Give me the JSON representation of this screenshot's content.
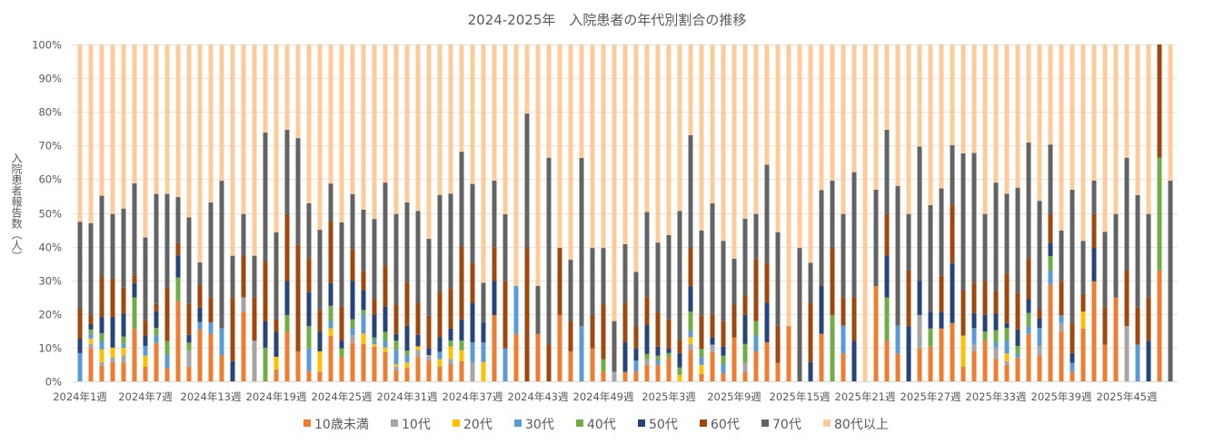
{
  "chart_data": {
    "type": "bar",
    "stacked": true,
    "normalized_percent": true,
    "title": "2024-2025年　入院患者の年代別割合の推移",
    "ylabel": "入院患者報告数（人）",
    "xlabel": "",
    "ylim": [
      0,
      100
    ],
    "yticks": [
      "0%",
      "10%",
      "20%",
      "30%",
      "40%",
      "50%",
      "60%",
      "70%",
      "80%",
      "90%",
      "100%"
    ],
    "grid": true,
    "legend": "bottom",
    "xtick_labels": [
      "2024年1週",
      "2024年7週",
      "2024年13週",
      "2024年19週",
      "2024年25週",
      "2024年31週",
      "2024年37週",
      "2024年43週",
      "2024年49週",
      "2025年3週",
      "2025年9週",
      "2025年15週",
      "2025年21週",
      "2025年27週",
      "2025年33週",
      "2025年39週",
      "2025年45週"
    ],
    "series": [
      {
        "name": "10歳未満",
        "color": "#ED7D31",
        "values": [
          0,
          9.8,
          4.6,
          5.7,
          5.5,
          15.7,
          4.4,
          11.4,
          3.9,
          23.8,
          4.4,
          15.4,
          14.1,
          7.8,
          0,
          20.6,
          0,
          0,
          3.5,
          14.8,
          8.9,
          3,
          2.8,
          13.6,
          7.3,
          11.4,
          11.1,
          10.3,
          8.7,
          3.3,
          4,
          7.3,
          6.2,
          4.4,
          5.1,
          6,
          0,
          0,
          19.7,
          0,
          14.1,
          0,
          14.1,
          0,
          19.7,
          8.9,
          0,
          9.8,
          3,
          0,
          2.8,
          3,
          4.9,
          4.9,
          7.3,
          0,
          9.3,
          2.2,
          8.7,
          2.4,
          13,
          2.8,
          8.9,
          11.6,
          5.5,
          16.4,
          0,
          0,
          14.1,
          0,
          8.2,
          0,
          0,
          28.3,
          12.1,
          8.2,
          0,
          9.8,
          10.3,
          15.7,
          17.3,
          4.4,
          8.9,
          12.1,
          6.6,
          4.9,
          7.1,
          14.1,
          7.8,
          28.8,
          14.8,
          2.8,
          15.7,
          29.7,
          10.9,
          24.9,
          0,
          0,
          0,
          33,
          0
        ]
      },
      {
        "name": "10代",
        "color": "#A5A5A5",
        "values": [
          0,
          1.3,
          1.1,
          1.4,
          2.2,
          0,
          0,
          0,
          0,
          0,
          4.9,
          0,
          0,
          0,
          0,
          4.3,
          12.1,
          0,
          0,
          0,
          0,
          0,
          0,
          0,
          0,
          2.3,
          0,
          0,
          0,
          1.1,
          0,
          2,
          1.6,
          0,
          1.6,
          0,
          5.7,
          0,
          0,
          0,
          0,
          0,
          0,
          0,
          0,
          0,
          0,
          0,
          0,
          2.8,
          0,
          0,
          1.6,
          0,
          0,
          0,
          1.8,
          0,
          2.2,
          0,
          0,
          2.7,
          0,
          0,
          0,
          0,
          0,
          0,
          0,
          0,
          0,
          0,
          0,
          0,
          0,
          0,
          0,
          9.9,
          0,
          0,
          0,
          0,
          2.2,
          0,
          3.4,
          1.1,
          0,
          0,
          2.7,
          0,
          2.5,
          0,
          0,
          0,
          0,
          0,
          16.4,
          0,
          0,
          0,
          0
        ]
      },
      {
        "name": "20代",
        "color": "#FFC000",
        "values": [
          0,
          1.6,
          3.8,
          2.9,
          2.3,
          0,
          3.2,
          0,
          0,
          0,
          0,
          0,
          0,
          0,
          0,
          0,
          0,
          0,
          3.8,
          0,
          0,
          0,
          6.1,
          2.2,
          0,
          0,
          3.1,
          0.7,
          1.3,
          0.7,
          1.6,
          1.1,
          0,
          2.2,
          3.6,
          3.2,
          0,
          5.7,
          0,
          0,
          0,
          0,
          0,
          0,
          0,
          0,
          0,
          0,
          0,
          0,
          0,
          0,
          0,
          0,
          0,
          1.9,
          2,
          2.7,
          0,
          0,
          0,
          0,
          0,
          0,
          0,
          0,
          0,
          0,
          0,
          0,
          0,
          0,
          0,
          0,
          0,
          0,
          0,
          0,
          0,
          0,
          0,
          9.2,
          0,
          0,
          0,
          2.3,
          0,
          0,
          0,
          0,
          0,
          0,
          5,
          0,
          0,
          0,
          0,
          0,
          0,
          0,
          0
        ]
      },
      {
        "name": "30代",
        "color": "#5B9BD5",
        "values": [
          8.4,
          1.4,
          2.5,
          0,
          1.1,
          0,
          2.9,
          2.3,
          4,
          0,
          0,
          2.2,
          3.4,
          7.9,
          0,
          0,
          0,
          0,
          0,
          0,
          0,
          6.8,
          0,
          2.2,
          0,
          2.2,
          5.6,
          1.1,
          2,
          4.3,
          2.2,
          0,
          0,
          2.2,
          0,
          0,
          5.9,
          5.9,
          0,
          9.8,
          14.2,
          0,
          0,
          0,
          0,
          0,
          16.4,
          0,
          0,
          0,
          0,
          3.2,
          0,
          1.3,
          0,
          0,
          1.8,
          2.3,
          0,
          2.7,
          0,
          0,
          4.7,
          0,
          0,
          0,
          0,
          0,
          0,
          0,
          8.3,
          0,
          0,
          0,
          0,
          8.3,
          0,
          0,
          0,
          0,
          0,
          0,
          4.7,
          0,
          1.6,
          3.8,
          1.1,
          2.2,
          5.4,
          4.1,
          2.3,
          2.7,
          0,
          0,
          0,
          0,
          0,
          10.9,
          0,
          0,
          0
        ]
      },
      {
        "name": "40代",
        "color": "#70AD47",
        "values": [
          0,
          1.3,
          2.3,
          0,
          2.2,
          9.2,
          0,
          2.2,
          4.1,
          7,
          2.2,
          0,
          0,
          0,
          0,
          0,
          0,
          10,
          0,
          4.9,
          0,
          6.6,
          0,
          4.5,
          2.5,
          2.5,
          1.4,
          0.9,
          2.7,
          2.7,
          1.3,
          0,
          0,
          0,
          1.8,
          2.9,
          0,
          0,
          0,
          0,
          0,
          0,
          0,
          0,
          0,
          0,
          0,
          0,
          3.6,
          0,
          0,
          0,
          1.6,
          1.4,
          1.1,
          2.2,
          5.8,
          2.5,
          0,
          2.5,
          0,
          5.6,
          4.3,
          0,
          0,
          0,
          0,
          0,
          0,
          19.7,
          0,
          0,
          0,
          0,
          12.8,
          0,
          0,
          0,
          5.4,
          0,
          0,
          0,
          0,
          2.7,
          3.6,
          3.8,
          2.3,
          4,
          0,
          4.3,
          0,
          0,
          0,
          0,
          0,
          0,
          0,
          0,
          0,
          33.4,
          0
        ]
      },
      {
        "name": "50代",
        "color": "#264478",
        "values": [
          4.3,
          1.6,
          4.7,
          9,
          6.8,
          4.3,
          3.1,
          4.9,
          0,
          6.6,
          2.3,
          4.3,
          0,
          0,
          6,
          0,
          0,
          7.9,
          7.4,
          10.1,
          0,
          10.1,
          5.9,
          6.8,
          2.3,
          11.5,
          5.9,
          6.8,
          7.5,
          2,
          7.4,
          3.4,
          2,
          4.3,
          3.6,
          6.3,
          11.7,
          5.8,
          10.1,
          0,
          0,
          0,
          0,
          0,
          0,
          0,
          0,
          0,
          0,
          0,
          8.8,
          3.6,
          8.6,
          2.7,
          1.4,
          4.3,
          7.5,
          0,
          2.2,
          2.7,
          0,
          8.6,
          0,
          11.7,
          0,
          0,
          0,
          5.7,
          14.2,
          0,
          0,
          12.1,
          0,
          0,
          12.4,
          0,
          16.4,
          10.1,
          5,
          5,
          17.8,
          0,
          4.5,
          4.9,
          4.9,
          1.4,
          4.9,
          4.1,
          2.7,
          4,
          0,
          2.9,
          0,
          9.9,
          0,
          0,
          0,
          0,
          12.1,
          0,
          0
        ]
      },
      {
        "name": "60代",
        "color": "#9E480E",
        "values": [
          9,
          2.7,
          12,
          11.5,
          7.7,
          2.3,
          4.5,
          2.2,
          15.8,
          3.6,
          9.2,
          6.8,
          7.4,
          0,
          18.9,
          12.4,
          12.8,
          17.8,
          3.8,
          19.9,
          31.6,
          9.9,
          6.3,
          18.3,
          10.1,
          9.2,
          5.6,
          4.7,
          12,
          8.8,
          12.9,
          9.5,
          9.7,
          13.5,
          12,
          21.7,
          11.9,
          0,
          9.9,
          19.9,
          0,
          39.6,
          0,
          10.9,
          19.9,
          8.9,
          0,
          9.9,
          16.3,
          0,
          11.7,
          6.5,
          8.3,
          10.2,
          8.6,
          4.1,
          11.3,
          9.9,
          6.6,
          7.7,
          9.9,
          5.8,
          18.3,
          11.9,
          11,
          0,
          0,
          17.6,
          0,
          19.9,
          8.4,
          12.8,
          0,
          0,
          12.4,
          0,
          16.6,
          0,
          0,
          10.6,
          17.4,
          13.5,
          9,
          10.1,
          6.6,
          14.7,
          10.8,
          12,
          2.7,
          8.4,
          10.1,
          8.6,
          5.2,
          10.1,
          11,
          0,
          16.6,
          11,
          12.8,
          33.6,
          0
        ]
      },
      {
        "name": "70代",
        "color": "#636363",
        "values": [
          25.7,
          27.2,
          24.1,
          19.2,
          23.5,
          27.3,
          24.6,
          32.7,
          27.9,
          13.7,
          25.7,
          6.6,
          28.2,
          43.8,
          12.4,
          12.4,
          12.4,
          38.2,
          25.8,
          25,
          31.7,
          16.5,
          23.9,
          11.3,
          25,
          16.5,
          18.3,
          23.7,
          24.8,
          26.8,
          23.7,
          27.3,
          22.8,
          28.8,
          28,
          28,
          23.4,
          11.9,
          19.9,
          19.9,
          0,
          39.9,
          14.2,
          55.5,
          0,
          18.3,
          49.9,
          19.9,
          16.7,
          15.1,
          17.4,
          16.2,
          25.3,
          20.7,
          25,
          38.1,
          33.6,
          25.2,
          33.2,
          23.7,
          13.5,
          22.8,
          13.5,
          29.1,
          27.8,
          0,
          39.6,
          11.9,
          28.5,
          20,
          24.8,
          37.2,
          0,
          28.6,
          25,
          41.5,
          16.7,
          39.9,
          31.6,
          26,
          17.6,
          40.6,
          38.5,
          19.9,
          32.3,
          23.7,
          31.3,
          34.5,
          32.3,
          20.7,
          15.1,
          39.9,
          15.8,
          9.9,
          22.5,
          24.8,
          33.4,
          33.4,
          24.8,
          0,
          59.6
        ]
      },
      {
        "name": "80代以上",
        "color": "#FDCB9A",
        "values": [
          52.6,
          53.1,
          44.9,
          50.3,
          48.7,
          41.2,
          57.3,
          44.4,
          44.4,
          45.3,
          51.4,
          64.7,
          46.9,
          40.4,
          62.7,
          50.3,
          62.7,
          26.1,
          55.8,
          25.3,
          27.8,
          47.1,
          55,
          41.4,
          52.8,
          44.4,
          49.1,
          51.8,
          41,
          50.3,
          46.9,
          49.4,
          57.7,
          44.7,
          44.2,
          31.8,
          41.4,
          70.7,
          40.4,
          50.4,
          71.7,
          20.5,
          71.7,
          33.6,
          60.4,
          63.9,
          33.7,
          60.4,
          60.4,
          82.1,
          59.3,
          67.5,
          49.7,
          58.8,
          56.6,
          49.4,
          26.9,
          55.2,
          47.1,
          58.3,
          63.6,
          51.7,
          50.3,
          35.7,
          55.7,
          83.6,
          60.4,
          64.8,
          43.2,
          40.4,
          50.3,
          37.9,
          100,
          43.1,
          25.3,
          42,
          50.3,
          30.3,
          47.7,
          42.7,
          29.9,
          32.3,
          32.2,
          50.3,
          41,
          44.3,
          42.5,
          29.1,
          46.4,
          29.7,
          55.2,
          43.1,
          58.3,
          40.4,
          55.6,
          50.3,
          33.6,
          44.7,
          50.3,
          0,
          40.4
        ]
      }
    ]
  }
}
